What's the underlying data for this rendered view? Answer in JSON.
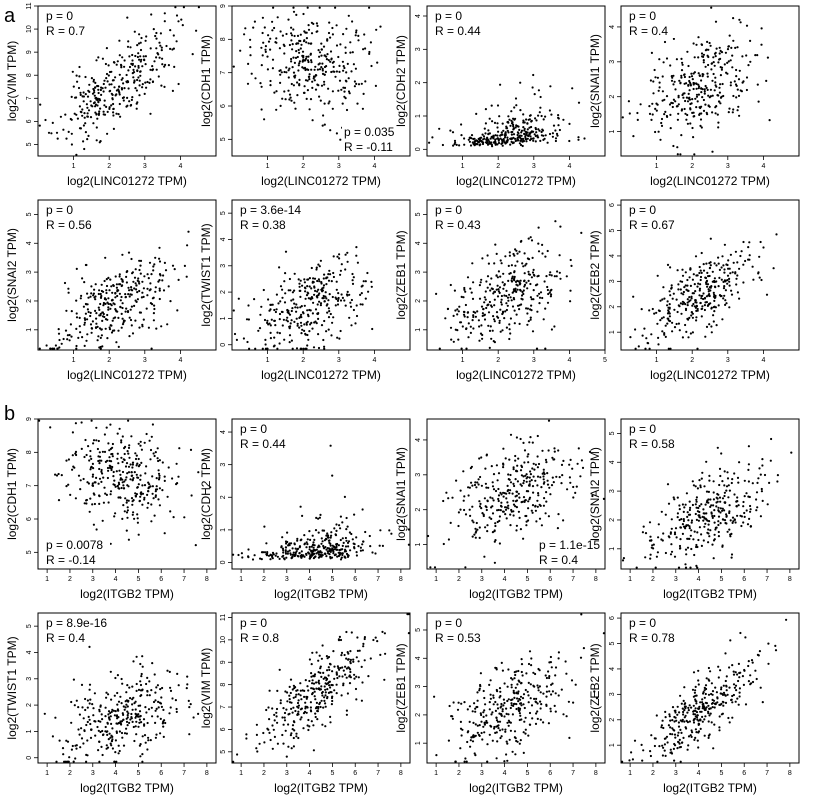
{
  "panel_labels": [
    "a",
    "b"
  ],
  "chart_data": [
    {
      "type": "scatter",
      "panel": "a",
      "xlabel": "log2(LINC01272 TPM)",
      "ylabel": "log2(VIM TPM)",
      "p": "p = 0",
      "r": "R = 0.7",
      "ann_pos": "top-left",
      "xlim": [
        0,
        5
      ],
      "ylim": [
        4.5,
        11
      ],
      "xticks": [
        1,
        2,
        3,
        4
      ],
      "yticks": [
        5,
        6,
        7,
        8,
        9,
        10,
        11
      ],
      "corr": 0.7,
      "x_mean": 2.2,
      "x_sd": 0.8,
      "y_mean": 7.5,
      "y_sd": 1.2,
      "y_skew": 0,
      "n": 330,
      "seed": 11
    },
    {
      "type": "scatter",
      "panel": "a",
      "xlabel": "log2(LINC01272 TPM)",
      "ylabel": "log2(CDH1 TPM)",
      "p": "p = 0.035",
      "r": "R = -0.11",
      "ann_pos": "bottom-right",
      "xlim": [
        0,
        5
      ],
      "ylim": [
        4.5,
        9
      ],
      "xticks": [
        1,
        2,
        3,
        4
      ],
      "yticks": [
        5,
        6,
        7,
        8,
        9
      ],
      "corr": -0.11,
      "x_mean": 2.2,
      "x_sd": 0.8,
      "y_mean": 7.3,
      "y_sd": 0.75,
      "y_skew": 0,
      "n": 330,
      "seed": 12
    },
    {
      "type": "scatter",
      "panel": "a",
      "xlabel": "log2(LINC01272 TPM)",
      "ylabel": "log2(CDH2 TPM)",
      "p": "p = 0",
      "r": "R = 0.44",
      "ann_pos": "top-left",
      "xlim": [
        0,
        5
      ],
      "ylim": [
        -0.2,
        4.3
      ],
      "xticks": [
        1,
        2,
        3,
        4
      ],
      "yticks": [
        0,
        1,
        2,
        3,
        4
      ],
      "corr": 0.44,
      "x_mean": 2.2,
      "x_sd": 0.8,
      "y_mean": 0.7,
      "y_sd": 0.6,
      "y_skew": 1,
      "n": 330,
      "seed": 13
    },
    {
      "type": "scatter",
      "panel": "a",
      "xlabel": "log2(LINC01272 TPM)",
      "ylabel": "log2(SNAI1 TPM)",
      "p": "p = 0",
      "r": "R = 0.4",
      "ann_pos": "top-left",
      "xlim": [
        0,
        5
      ],
      "ylim": [
        0.3,
        4.6
      ],
      "xticks": [
        1,
        2,
        3,
        4
      ],
      "yticks": [
        1,
        2,
        3,
        4
      ],
      "corr": 0.4,
      "x_mean": 2.2,
      "x_sd": 0.8,
      "y_mean": 2.3,
      "y_sd": 0.8,
      "y_skew": 0,
      "n": 330,
      "seed": 14
    },
    {
      "type": "scatter",
      "panel": "a",
      "xlabel": "log2(LINC01272 TPM)",
      "ylabel": "log2(SNAI2 TPM)",
      "p": "p = 0",
      "r": "R = 0.56",
      "ann_pos": "top-left",
      "xlim": [
        0,
        5
      ],
      "ylim": [
        0.3,
        5.5
      ],
      "xticks": [
        1,
        2,
        3,
        4
      ],
      "yticks": [
        1,
        2,
        3,
        4,
        5
      ],
      "corr": 0.56,
      "x_mean": 2.2,
      "x_sd": 0.8,
      "y_mean": 2.0,
      "y_sd": 0.85,
      "y_skew": 0,
      "n": 330,
      "seed": 15
    },
    {
      "type": "scatter",
      "panel": "a",
      "xlabel": "log2(LINC01272 TPM)",
      "ylabel": "log2(TWIST1 TPM)",
      "p": "p = 3.6e-14",
      "r": "R = 0.38",
      "ann_pos": "top-left",
      "xlim": [
        0,
        5
      ],
      "ylim": [
        -0.2,
        5.5
      ],
      "xticks": [
        1,
        2,
        3,
        4
      ],
      "yticks": [
        0,
        1,
        2,
        3,
        4,
        5
      ],
      "corr": 0.38,
      "x_mean": 2.2,
      "x_sd": 0.8,
      "y_mean": 1.5,
      "y_sd": 0.9,
      "y_skew": 0,
      "n": 330,
      "seed": 16
    },
    {
      "type": "scatter",
      "panel": "a",
      "xlabel": "log2(LINC01272 TPM)",
      "ylabel": "log2(ZEB1 TPM)",
      "p": "p = 0",
      "r": "R = 0.43",
      "ann_pos": "top-left",
      "xlim": [
        0,
        5
      ],
      "ylim": [
        0.3,
        5.5
      ],
      "xticks": [
        1,
        2,
        3,
        4,
        5
      ],
      "yticks": [
        1,
        2,
        3,
        4,
        5
      ],
      "corr": 0.43,
      "x_mean": 2.2,
      "x_sd": 0.8,
      "y_mean": 2.2,
      "y_sd": 0.9,
      "y_skew": 0,
      "n": 330,
      "seed": 17
    },
    {
      "type": "scatter",
      "panel": "a",
      "xlabel": "log2(LINC01272 TPM)",
      "ylabel": "log2(ZEB2 TPM)",
      "p": "p = 0",
      "r": "R = 0.67",
      "ann_pos": "top-left",
      "xlim": [
        0,
        5
      ],
      "ylim": [
        0.3,
        6.2
      ],
      "xticks": [
        1,
        2,
        3,
        4
      ],
      "yticks": [
        1,
        2,
        3,
        4,
        5,
        6
      ],
      "corr": 0.67,
      "x_mean": 2.2,
      "x_sd": 0.8,
      "y_mean": 2.4,
      "y_sd": 0.95,
      "y_skew": 0,
      "n": 330,
      "seed": 18
    },
    {
      "type": "scatter",
      "panel": "b",
      "xlabel": "log2(ITGB2 TPM)",
      "ylabel": "log2(CDH1 TPM)",
      "p": "p = 0.0078",
      "r": "R = -0.14",
      "ann_pos": "bottom-left",
      "xlim": [
        0.6,
        8.4
      ],
      "ylim": [
        4.5,
        9
      ],
      "xticks": [
        1,
        2,
        3,
        4,
        5,
        6,
        7,
        8
      ],
      "yticks": [
        5,
        6,
        7,
        8,
        9
      ],
      "corr": -0.14,
      "x_mean": 4.3,
      "x_sd": 1.3,
      "y_mean": 7.3,
      "y_sd": 0.75,
      "y_skew": 0,
      "n": 330,
      "seed": 21
    },
    {
      "type": "scatter",
      "panel": "b",
      "xlabel": "log2(ITGB2 TPM)",
      "ylabel": "log2(CDH2 TPM)",
      "p": "p = 0",
      "r": "R = 0.44",
      "ann_pos": "top-left",
      "xlim": [
        0.6,
        8.4
      ],
      "ylim": [
        -0.2,
        4.4
      ],
      "xticks": [
        1,
        2,
        3,
        4,
        5,
        6,
        7,
        8
      ],
      "yticks": [
        0,
        1,
        2,
        3,
        4
      ],
      "corr": 0.44,
      "x_mean": 4.3,
      "x_sd": 1.3,
      "y_mean": 0.7,
      "y_sd": 0.6,
      "y_skew": 1,
      "n": 330,
      "seed": 22
    },
    {
      "type": "scatter",
      "panel": "b",
      "xlabel": "log2(ITGB2 TPM)",
      "ylabel": "log2(SNAI1 TPM)",
      "p": "p = 1.1e-15",
      "r": "R = 0.4",
      "ann_pos": "bottom-right",
      "xlim": [
        0.6,
        8.4
      ],
      "ylim": [
        0.3,
        4.6
      ],
      "xticks": [
        1,
        2,
        3,
        4,
        5,
        6,
        7,
        8
      ],
      "yticks": [
        1,
        2,
        3,
        4
      ],
      "corr": 0.4,
      "x_mean": 4.3,
      "x_sd": 1.3,
      "y_mean": 2.4,
      "y_sd": 0.75,
      "y_skew": 0,
      "n": 330,
      "seed": 23
    },
    {
      "type": "scatter",
      "panel": "b",
      "xlabel": "log2(ITGB2 TPM)",
      "ylabel": "log2(SNAI2 TPM)",
      "p": "p = 0",
      "r": "R = 0.58",
      "ann_pos": "top-left",
      "xlim": [
        0.6,
        8.4
      ],
      "ylim": [
        0.3,
        5.5
      ],
      "xticks": [
        1,
        2,
        3,
        4,
        5,
        6,
        7,
        8
      ],
      "yticks": [
        1,
        2,
        3,
        4,
        5
      ],
      "corr": 0.58,
      "x_mean": 4.3,
      "x_sd": 1.3,
      "y_mean": 2.1,
      "y_sd": 0.85,
      "y_skew": 0,
      "n": 330,
      "seed": 24
    },
    {
      "type": "scatter",
      "panel": "b",
      "xlabel": "log2(ITGB2 TPM)",
      "ylabel": "log2(TWIST1 TPM)",
      "p": "p = 8.9e-16",
      "r": "R = 0.4",
      "ann_pos": "top-left",
      "xlim": [
        0.6,
        8.4
      ],
      "ylim": [
        -0.2,
        5.5
      ],
      "xticks": [
        1,
        2,
        3,
        4,
        5,
        6,
        7,
        8
      ],
      "yticks": [
        0,
        1,
        2,
        3,
        4,
        5
      ],
      "corr": 0.4,
      "x_mean": 4.3,
      "x_sd": 1.3,
      "y_mean": 1.5,
      "y_sd": 0.9,
      "y_skew": 0,
      "n": 330,
      "seed": 25
    },
    {
      "type": "scatter",
      "panel": "b",
      "xlabel": "log2(ITGB2 TPM)",
      "ylabel": "log2(VIM TPM)",
      "p": "p = 0",
      "r": "R = 0.8",
      "ann_pos": "top-left",
      "xlim": [
        0.6,
        8.4
      ],
      "ylim": [
        4.5,
        11.2
      ],
      "xticks": [
        1,
        2,
        3,
        4,
        5,
        6,
        7,
        8
      ],
      "yticks": [
        5,
        6,
        7,
        8,
        9,
        10,
        11
      ],
      "corr": 0.8,
      "x_mean": 4.3,
      "x_sd": 1.3,
      "y_mean": 7.6,
      "y_sd": 1.3,
      "y_skew": 0,
      "n": 330,
      "seed": 26
    },
    {
      "type": "scatter",
      "panel": "b",
      "xlabel": "log2(ITGB2 TPM)",
      "ylabel": "log2(ZEB1 TPM)",
      "p": "p = 0",
      "r": "R = 0.53",
      "ann_pos": "top-left",
      "xlim": [
        0.6,
        8.4
      ],
      "ylim": [
        0.3,
        5.6
      ],
      "xticks": [
        1,
        2,
        3,
        4,
        5,
        6,
        7,
        8
      ],
      "yticks": [
        1,
        2,
        3,
        4,
        5
      ],
      "corr": 0.53,
      "x_mean": 4.3,
      "x_sd": 1.3,
      "y_mean": 2.2,
      "y_sd": 0.9,
      "y_skew": 0,
      "n": 330,
      "seed": 27
    },
    {
      "type": "scatter",
      "panel": "b",
      "xlabel": "log2(ITGB2 TPM)",
      "ylabel": "log2(ZEB2 TPM)",
      "p": "p = 0",
      "r": "R = 0.78",
      "ann_pos": "top-left",
      "xlim": [
        0.6,
        8.4
      ],
      "ylim": [
        0.3,
        6.2
      ],
      "xticks": [
        1,
        2,
        3,
        4,
        5,
        6,
        7,
        8
      ],
      "yticks": [
        1,
        2,
        3,
        4,
        5,
        6
      ],
      "corr": 0.78,
      "x_mean": 4.3,
      "x_sd": 1.3,
      "y_mean": 2.5,
      "y_sd": 1.0,
      "y_skew": 0,
      "n": 330,
      "seed": 28
    }
  ]
}
